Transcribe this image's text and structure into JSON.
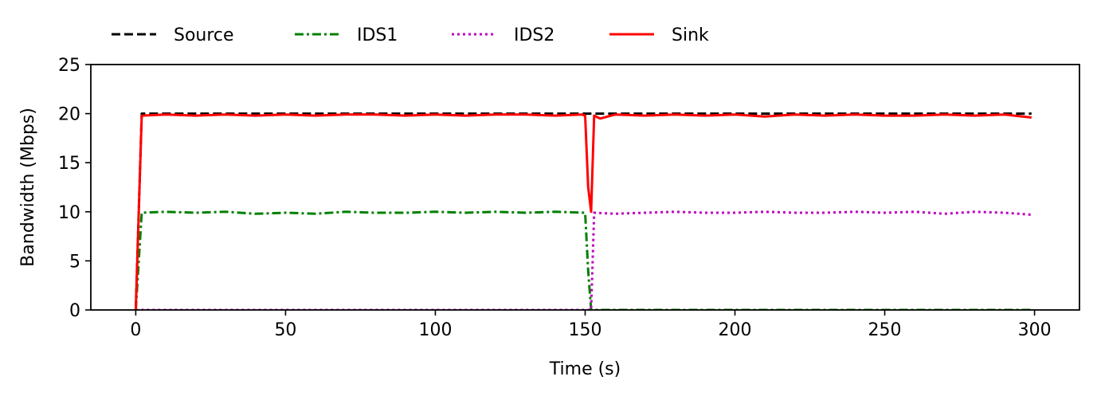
{
  "chart_data": {
    "type": "line",
    "title": "",
    "xlabel": "Time (s)",
    "ylabel": "Bandwidth (Mbps)",
    "xlim": [
      -15,
      315
    ],
    "ylim": [
      0,
      25
    ],
    "xticks": [
      0,
      50,
      100,
      150,
      200,
      250,
      300
    ],
    "xtick_labels": [
      "0",
      "50",
      "100",
      "150",
      "200",
      "250",
      "300"
    ],
    "yticks": [
      0,
      5,
      10,
      15,
      20,
      25
    ],
    "ytick_labels": [
      "0",
      "5",
      "10",
      "15",
      "20",
      "25"
    ],
    "grid": false,
    "legend_position": "top-left, outside plot",
    "series": [
      {
        "name": "Source",
        "color": "#000000",
        "dash": "dashed",
        "x": [
          0,
          2,
          150,
          151,
          152,
          153,
          154,
          299
        ],
        "y": [
          0,
          20,
          20,
          20,
          20,
          20,
          20,
          20
        ]
      },
      {
        "name": "IDS1",
        "color": "#008000",
        "dash": "dashdot",
        "x": [
          0,
          2,
          10,
          20,
          30,
          40,
          50,
          60,
          70,
          80,
          90,
          100,
          110,
          120,
          130,
          140,
          150,
          151,
          152,
          153,
          160,
          200,
          250,
          299
        ],
        "y": [
          0,
          9.9,
          10,
          9.9,
          10,
          9.8,
          9.9,
          9.8,
          10,
          9.9,
          9.9,
          10,
          9.9,
          10,
          9.9,
          10,
          9.9,
          4,
          0,
          0,
          0,
          0,
          0,
          0
        ]
      },
      {
        "name": "IDS2",
        "color": "#bf00bf",
        "dash": "dotted",
        "x": [
          0,
          50,
          100,
          150,
          151,
          152,
          153,
          160,
          170,
          180,
          190,
          200,
          210,
          220,
          230,
          240,
          250,
          260,
          270,
          280,
          290,
          299
        ],
        "y": [
          0,
          0,
          0,
          0,
          0,
          0,
          9.9,
          9.8,
          9.9,
          10,
          9.9,
          9.9,
          10,
          9.9,
          9.9,
          10,
          9.9,
          10,
          9.8,
          10,
          9.9,
          9.7
        ]
      },
      {
        "name": "Sink",
        "color": "#ff0000",
        "dash": "solid",
        "x": [
          0,
          2,
          10,
          20,
          30,
          40,
          50,
          60,
          70,
          80,
          90,
          100,
          110,
          120,
          130,
          140,
          149,
          150,
          151,
          152,
          153,
          155,
          160,
          170,
          180,
          190,
          200,
          210,
          220,
          230,
          240,
          250,
          260,
          270,
          280,
          290,
          299
        ],
        "y": [
          0,
          19.8,
          19.9,
          19.8,
          19.9,
          19.8,
          19.9,
          19.8,
          19.9,
          19.9,
          19.8,
          19.9,
          19.8,
          19.9,
          19.9,
          19.8,
          19.9,
          19.8,
          12.5,
          10,
          19.8,
          19.5,
          19.9,
          19.8,
          19.9,
          19.8,
          19.9,
          19.7,
          19.9,
          19.8,
          19.9,
          19.8,
          19.8,
          19.9,
          19.8,
          19.9,
          19.6
        ]
      }
    ]
  }
}
